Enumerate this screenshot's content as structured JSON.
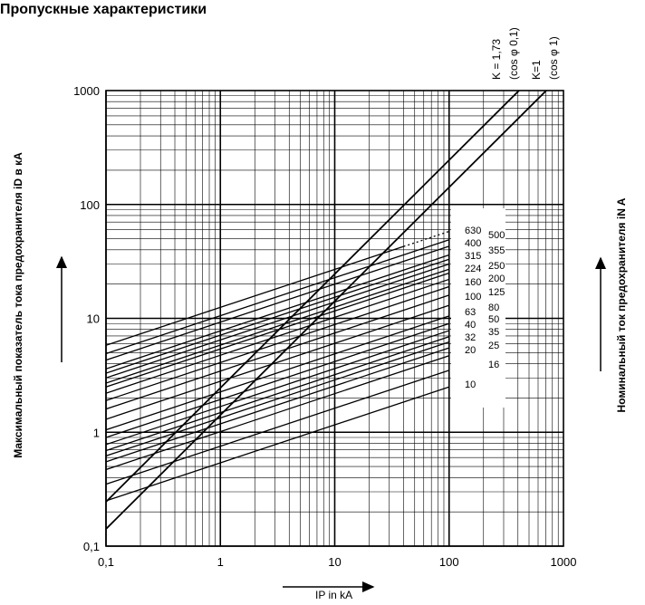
{
  "title": "Пропускные характеристики",
  "y_axis_title": "Максимальный показатель тока предохранителя iD в кА",
  "right_axis_title": "Номинальный ток предохранителя iN A",
  "x_unit_label": "IP in kA",
  "chart_data": {
    "type": "line",
    "scale": "log-log",
    "xlim": [
      0.1,
      1000
    ],
    "ylim": [
      0.1,
      1000
    ],
    "grid": true,
    "x_ticks": [
      "0,1",
      "1",
      "10",
      "100",
      "1000"
    ],
    "y_ticks": [
      "0,1",
      "1",
      "10",
      "100",
      "1000"
    ],
    "reference_lines": [
      {
        "label": "K = 1,73",
        "sub": "(cos φ 0,1)",
        "slope_k": 2.449
      },
      {
        "label": "K=1",
        "sub": "(cos φ 1)",
        "slope_k": 1.414
      }
    ],
    "ratings_left": [
      "630",
      "400",
      "315",
      "224",
      "160",
      "100",
      "63",
      "40",
      "32",
      "20",
      "10"
    ],
    "ratings_right": [
      "500",
      "355",
      "250",
      "200",
      "125",
      "80",
      "50",
      "35",
      "25",
      "16"
    ],
    "series": [
      {
        "rating": 10,
        "x": [
          0.1,
          100
        ],
        "y": [
          0.25,
          2.5
        ]
      },
      {
        "rating": 16,
        "x": [
          0.1,
          100
        ],
        "y": [
          0.35,
          3.5
        ]
      },
      {
        "rating": 20,
        "x": [
          0.1,
          100
        ],
        "y": [
          0.47,
          4.7
        ]
      },
      {
        "rating": 25,
        "x": [
          0.1,
          100
        ],
        "y": [
          0.55,
          5.5
        ]
      },
      {
        "rating": 32,
        "x": [
          0.1,
          100
        ],
        "y": [
          0.62,
          6.2
        ]
      },
      {
        "rating": 35,
        "x": [
          0.1,
          100
        ],
        "y": [
          0.69,
          6.9
        ]
      },
      {
        "rating": 40,
        "x": [
          0.1,
          100
        ],
        "y": [
          0.78,
          7.8
        ]
      },
      {
        "rating": 50,
        "x": [
          0.1,
          100
        ],
        "y": [
          0.9,
          9.0
        ]
      },
      {
        "rating": 63,
        "x": [
          0.1,
          100
        ],
        "y": [
          1.05,
          10.5
        ]
      },
      {
        "rating": 80,
        "x": [
          0.1,
          100
        ],
        "y": [
          1.3,
          13.0
        ]
      },
      {
        "rating": 100,
        "x": [
          0.1,
          100
        ],
        "y": [
          1.6,
          16.0
        ]
      },
      {
        "rating": 125,
        "x": [
          0.1,
          100
        ],
        "y": [
          1.9,
          19.0
        ]
      },
      {
        "rating": 160,
        "x": [
          0.1,
          100
        ],
        "y": [
          2.2,
          22.0
        ]
      },
      {
        "rating": 200,
        "x": [
          0.1,
          100
        ],
        "y": [
          2.5,
          25.0
        ]
      },
      {
        "rating": 224,
        "x": [
          0.1,
          100
        ],
        "y": [
          2.7,
          27.0
        ]
      },
      {
        "rating": 250,
        "x": [
          0.1,
          100
        ],
        "y": [
          3.0,
          30.0
        ]
      },
      {
        "rating": 315,
        "x": [
          0.1,
          100
        ],
        "y": [
          3.3,
          33.0
        ]
      },
      {
        "rating": 355,
        "x": [
          0.1,
          100
        ],
        "y": [
          3.6,
          36.0
        ]
      },
      {
        "rating": 400,
        "x": [
          0.1,
          100
        ],
        "y": [
          4.3,
          43.0
        ]
      },
      {
        "rating": 500,
        "x": [
          0.1,
          100
        ],
        "y": [
          4.9,
          49.0
        ]
      },
      {
        "rating": 630,
        "x": [
          0.1,
          100
        ],
        "y": [
          5.8,
          58.0
        ],
        "dashed_from_x": 40
      }
    ]
  },
  "colors": {
    "ink": "#000000",
    "background": "#ffffff"
  }
}
